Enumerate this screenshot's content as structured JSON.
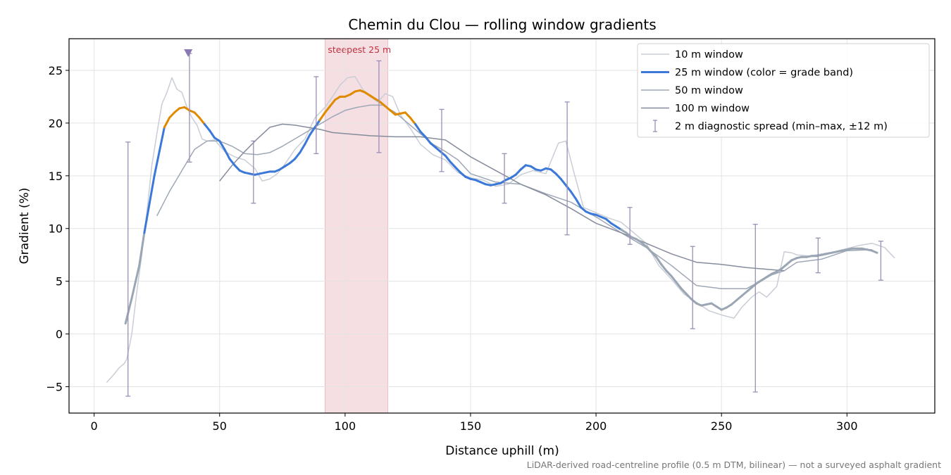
{
  "chart_data": {
    "type": "line",
    "title": "Chemin du Clou — rolling window gradients",
    "xlabel": "Distance uphill (m)",
    "ylabel": "Gradient (%)",
    "xlim": [
      -10,
      335
    ],
    "ylim": [
      -7.5,
      28
    ],
    "xticks": [
      0,
      50,
      100,
      150,
      200,
      250,
      300
    ],
    "yticks": [
      -5,
      0,
      5,
      10,
      15,
      20,
      25
    ],
    "tick_labels": {
      "x": [
        "0",
        "50",
        "100",
        "150",
        "200",
        "250",
        "300"
      ],
      "y": [
        "−5",
        "0",
        "5",
        "10",
        "15",
        "20",
        "25"
      ]
    },
    "grid": true,
    "legend_position": "top-right",
    "steepest_band": {
      "label": "steepest 25 m",
      "x_start": 92,
      "x_end": 117,
      "color": "#e8b9c0"
    },
    "peak_marker_x": 37.5,
    "footnote": "LiDAR-derived road-centreline profile (0.5 m DTM, bilinear) — not a surveyed asphalt gradient",
    "grade_band_colors": {
      "high": "#e08a00",
      "mid": "#3b78d8",
      "low": "#9aa6b3",
      "high_threshold": 20,
      "low_threshold": 10
    },
    "series": [
      {
        "name": "10 m window",
        "color": "#c9cdd6",
        "width": 1.5,
        "x": [
          5,
          8,
          10,
          12,
          13,
          15,
          17,
          19,
          21,
          23,
          25,
          27,
          29,
          31,
          33,
          35,
          37,
          39,
          41,
          43,
          45,
          48,
          52,
          56,
          60,
          64,
          67,
          70,
          73,
          76,
          80,
          84,
          88,
          92,
          95,
          98,
          101,
          104,
          107,
          110,
          113,
          116,
          119,
          122,
          126,
          130,
          135,
          140,
          145,
          150,
          155,
          160,
          165,
          170,
          175,
          180,
          185,
          188,
          191,
          195,
          200,
          205,
          210,
          215,
          220,
          225,
          230,
          235,
          240,
          245,
          250,
          255,
          258,
          262,
          265,
          268,
          272,
          275,
          278,
          280,
          285,
          290,
          295,
          300,
          305,
          310,
          315,
          319
        ],
        "y": [
          -4.6,
          -3.8,
          -3.2,
          -2.8,
          -2.4,
          0,
          4,
          7.5,
          11.5,
          16,
          19,
          21.8,
          22.9,
          24.3,
          23.2,
          22.9,
          21.5,
          20.5,
          19.8,
          18.5,
          18.3,
          18.4,
          17.3,
          16.8,
          16.5,
          15.7,
          14.5,
          14.7,
          15.2,
          16.1,
          17.5,
          18.5,
          20.5,
          21.5,
          22.5,
          23.6,
          24.3,
          24.4,
          23.2,
          22.5,
          22,
          22.8,
          22.5,
          20.8,
          19.5,
          18,
          17,
          16.5,
          15.3,
          14.8,
          14.6,
          14,
          14.2,
          15.1,
          15.5,
          15.2,
          18.1,
          18.3,
          15.5,
          12,
          11.5,
          11,
          10.6,
          9.6,
          8.6,
          6.5,
          5.2,
          3.8,
          3,
          2.2,
          1.8,
          1.5,
          2.5,
          3.5,
          4,
          3.5,
          4.5,
          7.8,
          7.7,
          7.5,
          7.4,
          7.6,
          7.8,
          8.1,
          8.4,
          8.6,
          8.2,
          7.2
        ]
      },
      {
        "name": "25 m window (color = grade band)",
        "color": "#3b78d8",
        "width": 3,
        "colored_by_grade": true,
        "x": [
          12.5,
          15,
          18,
          20,
          22,
          24,
          26,
          28,
          30,
          32,
          34,
          36,
          38,
          40,
          42,
          44,
          46,
          48,
          50,
          52,
          54,
          56,
          58,
          60,
          62,
          64,
          66,
          68,
          70,
          72,
          74,
          76,
          78,
          80,
          82,
          84,
          86,
          88,
          90,
          92,
          94,
          96,
          98,
          100,
          102,
          104,
          106,
          108,
          110,
          112,
          114,
          116,
          118,
          120,
          122,
          124,
          126,
          128,
          130,
          132,
          134,
          136,
          138,
          140,
          142,
          144,
          146,
          148,
          150,
          152,
          154,
          156,
          158,
          160,
          162,
          164,
          166,
          168,
          170,
          172,
          174,
          176,
          178,
          180,
          182,
          184,
          186,
          188,
          190,
          192,
          194,
          196,
          198,
          200,
          202,
          204,
          206,
          208,
          210,
          212,
          214,
          216,
          218,
          220,
          222,
          224,
          226,
          228,
          230,
          232,
          234,
          236,
          238,
          240,
          242,
          244,
          246,
          248,
          250,
          252,
          254,
          256,
          258,
          260,
          262,
          264,
          266,
          268,
          270,
          272,
          274,
          276,
          278,
          280,
          282,
          284,
          286,
          288,
          290,
          292,
          294,
          296,
          298,
          300,
          302,
          304,
          306,
          308,
          310,
          312
        ],
        "y": [
          1,
          3.4,
          6.5,
          9.6,
          12.3,
          15,
          17.3,
          19.6,
          20.5,
          21,
          21.4,
          21.5,
          21.2,
          21,
          20.5,
          19.9,
          19.3,
          18.6,
          18.3,
          17.5,
          16.6,
          16,
          15.5,
          15.3,
          15.2,
          15.1,
          15.2,
          15.3,
          15.4,
          15.4,
          15.6,
          15.9,
          16.2,
          16.6,
          17.2,
          18,
          18.9,
          19.6,
          20.3,
          21,
          21.6,
          22.2,
          22.5,
          22.5,
          22.7,
          23,
          23.1,
          22.9,
          22.6,
          22.3,
          22,
          21.6,
          21.2,
          20.8,
          20.9,
          21,
          20.5,
          19.9,
          19.2,
          18.7,
          18.1,
          17.7,
          17.3,
          16.9,
          16.3,
          15.8,
          15.3,
          14.9,
          14.7,
          14.6,
          14.4,
          14.2,
          14.1,
          14.2,
          14.3,
          14.6,
          14.8,
          15.1,
          15.6,
          16,
          15.9,
          15.6,
          15.5,
          15.7,
          15.6,
          15.2,
          14.7,
          14.1,
          13.5,
          12.8,
          12,
          11.6,
          11.4,
          11.3,
          11.1,
          10.9,
          10.5,
          10.2,
          9.9,
          9.6,
          9.2,
          9,
          8.7,
          8.3,
          7.8,
          7.3,
          6.6,
          6,
          5.5,
          4.9,
          4.3,
          3.8,
          3.3,
          2.9,
          2.7,
          2.8,
          2.9,
          2.6,
          2.3,
          2.5,
          2.8,
          3.2,
          3.6,
          4,
          4.4,
          4.8,
          5.1,
          5.4,
          5.7,
          5.9,
          6.2,
          6.6,
          7,
          7.2,
          7.3,
          7.3,
          7.4,
          7.4,
          7.5,
          7.6,
          7.7,
          7.8,
          7.9,
          8,
          8.1,
          8.1,
          8.1,
          8,
          7.9,
          7.7
        ]
      },
      {
        "name": "50 m window",
        "color": "#9ea7b5",
        "width": 1.5,
        "x": [
          25,
          30,
          35,
          40,
          45,
          50,
          55,
          60,
          65,
          70,
          75,
          80,
          85,
          90,
          95,
          100,
          105,
          110,
          115,
          120,
          125,
          130,
          135,
          140,
          145,
          150,
          160,
          170,
          180,
          190,
          200,
          210,
          220,
          230,
          240,
          250,
          260,
          270,
          275,
          280,
          290,
          300,
          310
        ],
        "y": [
          11.2,
          13.5,
          15.5,
          17.5,
          18.3,
          18.3,
          17.8,
          17.1,
          17,
          17.2,
          17.8,
          18.5,
          19.2,
          19.9,
          20.6,
          21.2,
          21.5,
          21.7,
          21.7,
          21,
          20,
          19,
          18,
          17.3,
          16.5,
          15.2,
          14.4,
          14.2,
          13.3,
          12.5,
          11.1,
          9.6,
          8.2,
          6.5,
          4.6,
          4.3,
          4.3,
          5.6,
          6,
          6.8,
          7.1,
          7.9,
          8
        ]
      },
      {
        "name": "100 m window",
        "color": "#858c9b",
        "width": 1.5,
        "x": [
          50,
          55,
          60,
          65,
          70,
          75,
          80,
          85,
          90,
          95,
          100,
          110,
          120,
          130,
          140,
          150,
          160,
          170,
          180,
          190,
          200,
          210,
          220,
          230,
          240,
          250,
          260,
          270,
          275
        ],
        "y": [
          14.5,
          16,
          17.3,
          18.5,
          19.6,
          19.9,
          19.8,
          19.6,
          19.4,
          19.1,
          19,
          18.8,
          18.7,
          18.7,
          18.4,
          16.8,
          15.5,
          14.2,
          13.2,
          11.9,
          10.5,
          9.6,
          8.6,
          7.6,
          6.8,
          6.6,
          6.3,
          6.1,
          6
        ]
      }
    ],
    "diagnostic_spread": {
      "name": "2 m diagnostic spread (min–max, ±12 m)",
      "color": "#9a8fb5",
      "x": [
        13.5,
        38,
        63.5,
        88.5,
        113.5,
        138.5,
        163.5,
        188.5,
        213.5,
        238.5,
        263.5,
        288.5,
        313.5
      ],
      "min": [
        -5.9,
        16.3,
        12.4,
        17.1,
        17.2,
        15.4,
        12.4,
        9.4,
        8.5,
        0.5,
        -5.5,
        5.8,
        5.1
      ],
      "max": [
        18.2,
        26.6,
        18.3,
        24.4,
        25.9,
        21.3,
        17.1,
        22,
        12,
        8.3,
        10.4,
        9.1,
        8.8
      ]
    }
  }
}
